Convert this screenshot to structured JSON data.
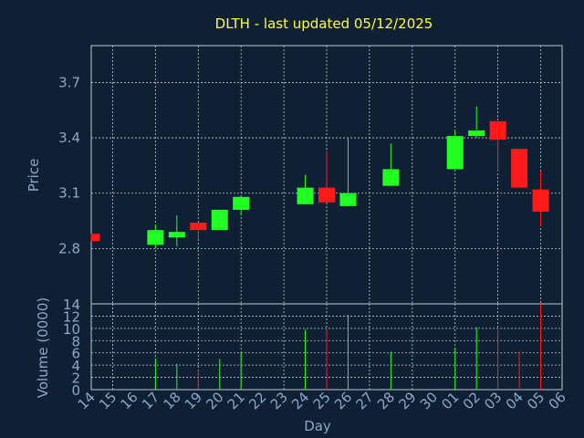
{
  "chart_data": {
    "type": "candlestick",
    "title": "DLTH - last updated 05/12/2025",
    "xlabel": "Day",
    "categories": [
      "14",
      "15",
      "16",
      "17",
      "18",
      "19",
      "20",
      "21",
      "22",
      "23",
      "24",
      "25",
      "26",
      "27",
      "28",
      "29",
      "30",
      "01",
      "02",
      "03",
      "04",
      "05",
      "06"
    ],
    "price_panel": {
      "ylabel": "Price",
      "ylim": [
        2.5,
        3.9
      ],
      "yticks": [
        "2.8",
        "3.1",
        "3.4",
        "3.7"
      ],
      "grid": true
    },
    "volume_panel": {
      "ylabel": "Volume (0000)",
      "ylim": [
        0,
        14
      ],
      "yticks": [
        "0",
        "2",
        "4",
        "6",
        "8",
        "10",
        "12",
        "14"
      ],
      "grid": true
    },
    "candles": [
      {
        "day": "14",
        "open": 2.88,
        "high": 2.88,
        "low": 2.84,
        "close": 2.84,
        "volume": 0
      },
      {
        "day": "17",
        "open": 2.82,
        "high": 2.93,
        "low": 2.8,
        "close": 2.9,
        "volume": 5
      },
      {
        "day": "18",
        "open": 2.86,
        "high": 2.98,
        "low": 2.81,
        "close": 2.89,
        "volume": 4.2
      },
      {
        "day": "19",
        "open": 2.94,
        "high": 2.94,
        "low": 2.85,
        "close": 2.9,
        "volume": 3.2
      },
      {
        "day": "20",
        "open": 2.9,
        "high": 3.01,
        "low": 2.9,
        "close": 3.01,
        "volume": 5
      },
      {
        "day": "21",
        "open": 3.01,
        "high": 3.08,
        "low": 2.98,
        "close": 3.08,
        "volume": 6.2
      },
      {
        "day": "24",
        "open": 3.04,
        "high": 3.2,
        "low": 3.04,
        "close": 3.13,
        "volume": 9.8
      },
      {
        "day": "25",
        "open": 3.13,
        "high": 3.33,
        "low": 3.05,
        "close": 3.05,
        "volume": 9.8
      },
      {
        "day": "26",
        "open": 3.03,
        "high": 3.4,
        "low": 3.03,
        "close": 3.1,
        "volume": 12.2
      },
      {
        "day": "28",
        "open": 3.14,
        "high": 3.37,
        "low": 3.14,
        "close": 3.23,
        "volume": 6.2
      },
      {
        "day": "01",
        "open": 3.23,
        "high": 3.44,
        "low": 3.23,
        "close": 3.41,
        "volume": 6.8
      },
      {
        "day": "02",
        "open": 3.41,
        "high": 3.57,
        "low": 3.4,
        "close": 3.44,
        "volume": 10.2
      },
      {
        "day": "03",
        "open": 3.49,
        "high": 3.49,
        "low": 3.22,
        "close": 3.39,
        "volume": 10.2
      },
      {
        "day": "04",
        "open": 3.34,
        "high": 3.34,
        "low": 3.13,
        "close": 3.13,
        "volume": 6.2
      },
      {
        "day": "05",
        "open": 3.12,
        "high": 3.22,
        "low": 2.92,
        "close": 3.0,
        "volume": 14
      }
    ],
    "colors": {
      "background": "#0f2035",
      "up": "#22ff22",
      "down": "#ff1a1a",
      "title": "#ffff33",
      "axis_text": "#8aa8c9",
      "grid": "#c0c8d2"
    }
  }
}
